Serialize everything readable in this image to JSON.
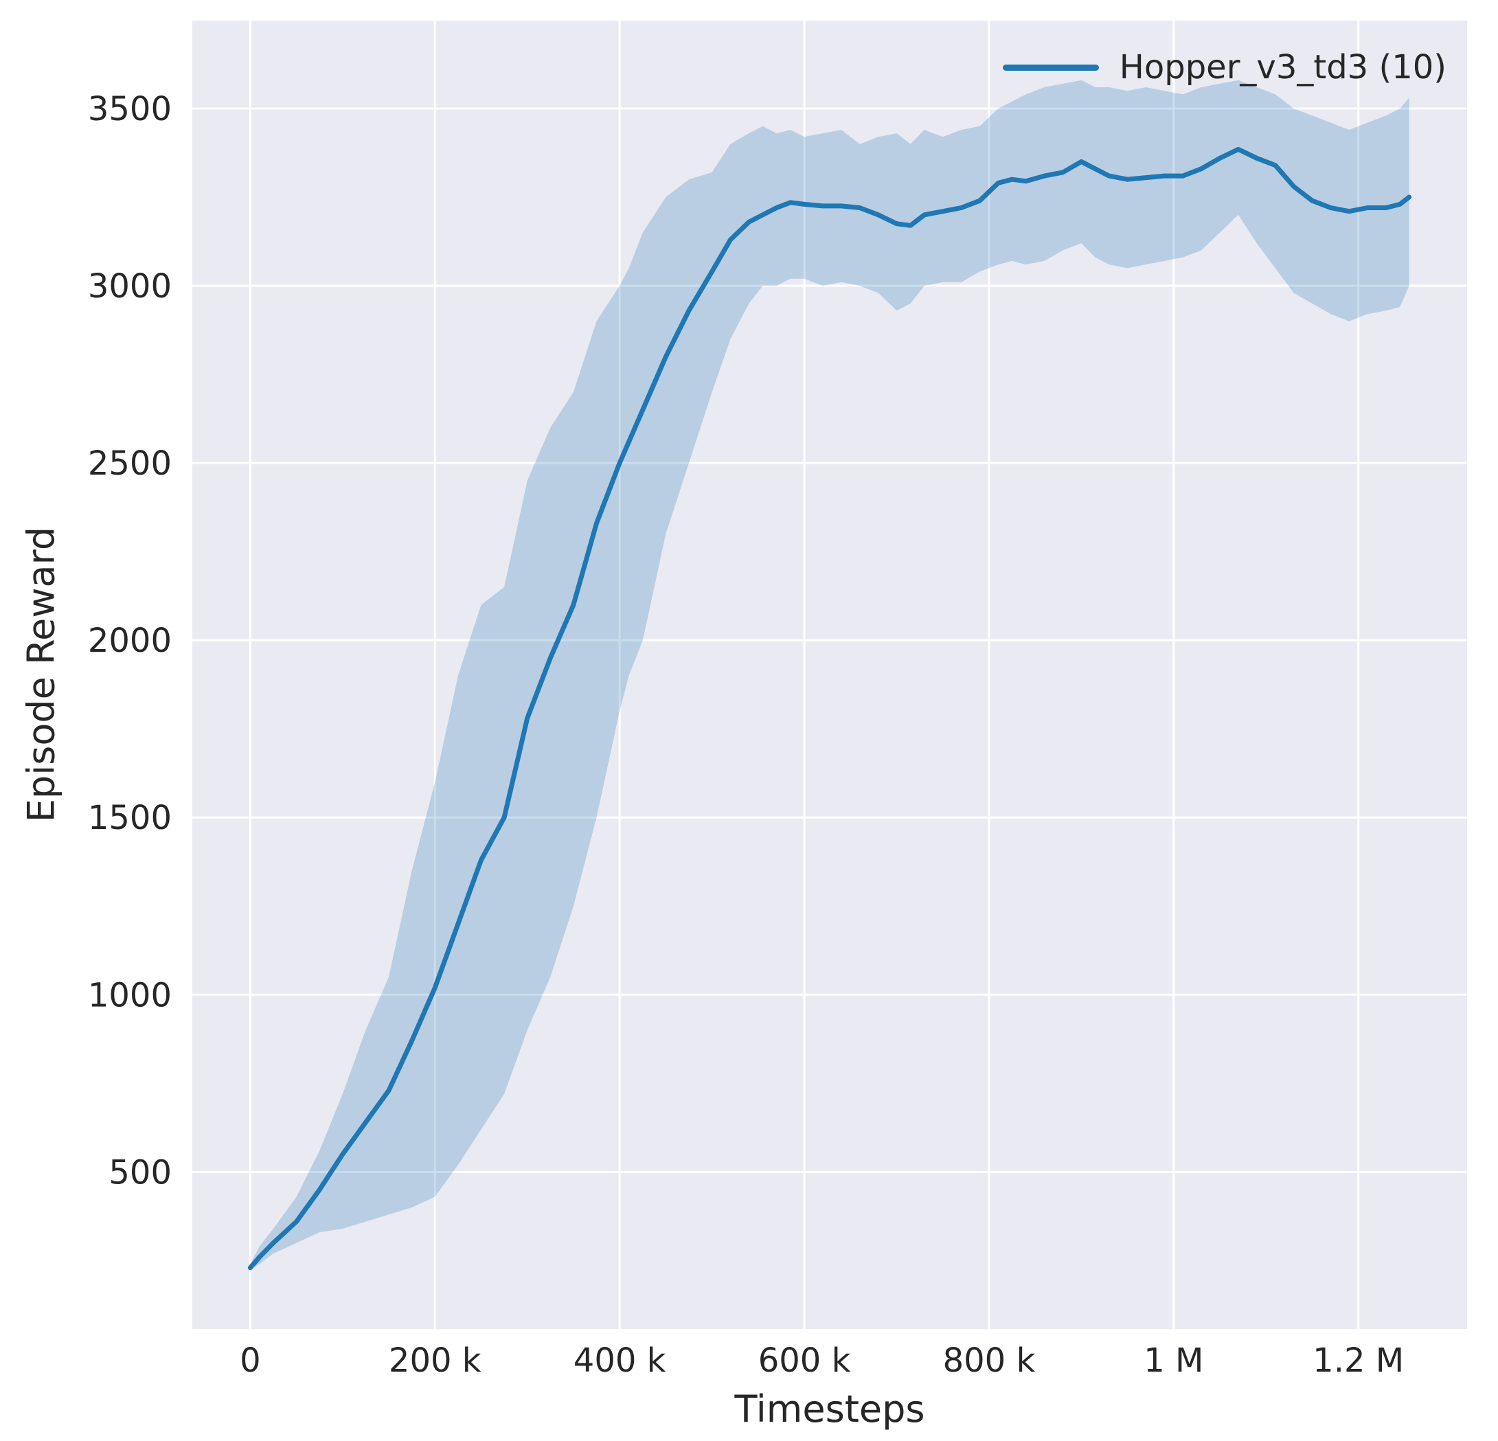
{
  "figure": {
    "background": "#ffffff",
    "axes_background": "#eaeaf2",
    "grid_color": "#ffffff",
    "text_color": "#262626"
  },
  "chart_data": {
    "type": "line",
    "title": "",
    "xlabel": "Timesteps",
    "ylabel": "Episode Reward",
    "xlim": [
      -62750,
      1317750
    ],
    "ylim": [
      57,
      3748
    ],
    "grid": true,
    "legend_position": "upper right",
    "xticks": [
      {
        "value": 0,
        "label": "0"
      },
      {
        "value": 200000,
        "label": "200 k"
      },
      {
        "value": 400000,
        "label": "400 k"
      },
      {
        "value": 600000,
        "label": "600 k"
      },
      {
        "value": 800000,
        "label": "800 k"
      },
      {
        "value": 1000000,
        "label": "1 M"
      },
      {
        "value": 1200000,
        "label": "1.2 M"
      }
    ],
    "yticks": [
      {
        "value": 500,
        "label": "500"
      },
      {
        "value": 1000,
        "label": "1000"
      },
      {
        "value": 1500,
        "label": "1500"
      },
      {
        "value": 2000,
        "label": "2000"
      },
      {
        "value": 2500,
        "label": "2500"
      },
      {
        "value": 3000,
        "label": "3000"
      },
      {
        "value": 3500,
        "label": "3500"
      }
    ],
    "legend": {
      "entries": [
        {
          "label": "Hopper_v3_td3 (10)",
          "color": "#1f77b4"
        }
      ]
    },
    "series": [
      {
        "name": "Hopper_v3_td3 (10)",
        "color": "#1f77b4",
        "band_fill": "rgba(31,119,180,0.24)",
        "line_width": 7,
        "x": [
          0,
          10000,
          25000,
          50000,
          75000,
          100000,
          125000,
          150000,
          175000,
          200000,
          225000,
          250000,
          275000,
          300000,
          325000,
          350000,
          375000,
          400000,
          410000,
          425000,
          450000,
          475000,
          500000,
          520000,
          540000,
          555000,
          570000,
          585000,
          600000,
          620000,
          640000,
          660000,
          680000,
          700000,
          715000,
          730000,
          750000,
          770000,
          790000,
          810000,
          825000,
          840000,
          860000,
          880000,
          900000,
          915000,
          930000,
          950000,
          970000,
          990000,
          1010000,
          1030000,
          1050000,
          1070000,
          1090000,
          1110000,
          1130000,
          1150000,
          1170000,
          1190000,
          1210000,
          1230000,
          1245000,
          1255000
        ],
        "mean": [
          230,
          260,
          300,
          360,
          450,
          550,
          640,
          730,
          870,
          1020,
          1200,
          1380,
          1500,
          1780,
          1950,
          2100,
          2330,
          2500,
          2560,
          2650,
          2800,
          2930,
          3040,
          3130,
          3180,
          3200,
          3220,
          3235,
          3230,
          3225,
          3225,
          3220,
          3200,
          3175,
          3170,
          3200,
          3210,
          3220,
          3240,
          3290,
          3300,
          3295,
          3310,
          3320,
          3350,
          3330,
          3310,
          3300,
          3305,
          3310,
          3310,
          3330,
          3360,
          3385,
          3360,
          3340,
          3280,
          3240,
          3220,
          3210,
          3220,
          3220,
          3230,
          3250
        ],
        "lower": [
          225,
          240,
          270,
          300,
          330,
          340,
          360,
          380,
          400,
          430,
          520,
          620,
          720,
          900,
          1050,
          1250,
          1500,
          1800,
          1900,
          2000,
          2300,
          2500,
          2700,
          2850,
          2950,
          3000,
          3000,
          3020,
          3020,
          3000,
          3010,
          3000,
          2980,
          2930,
          2950,
          3000,
          3010,
          3010,
          3040,
          3060,
          3070,
          3060,
          3070,
          3100,
          3120,
          3080,
          3060,
          3050,
          3060,
          3070,
          3080,
          3100,
          3150,
          3200,
          3120,
          3050,
          2980,
          2950,
          2920,
          2900,
          2920,
          2930,
          2940,
          3000
        ],
        "upper": [
          240,
          290,
          340,
          430,
          560,
          720,
          900,
          1050,
          1350,
          1600,
          1900,
          2100,
          2150,
          2450,
          2600,
          2700,
          2900,
          3000,
          3050,
          3150,
          3250,
          3300,
          3320,
          3400,
          3430,
          3450,
          3430,
          3440,
          3420,
          3430,
          3440,
          3400,
          3420,
          3430,
          3400,
          3440,
          3420,
          3440,
          3450,
          3500,
          3520,
          3540,
          3560,
          3570,
          3580,
          3560,
          3560,
          3550,
          3560,
          3550,
          3540,
          3560,
          3570,
          3580,
          3560,
          3540,
          3500,
          3480,
          3460,
          3440,
          3460,
          3480,
          3500,
          3530
        ]
      }
    ]
  }
}
